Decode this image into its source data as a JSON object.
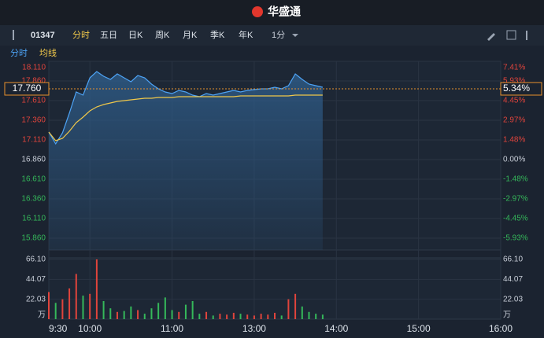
{
  "header": {
    "logo": "华盛通"
  },
  "toolbar": {
    "code": "01347",
    "tabs": [
      "分时",
      "五日",
      "日K",
      "周K",
      "月K",
      "季K",
      "年K"
    ],
    "interval": "1分"
  },
  "chart_data": [
    {
      "type": "line",
      "x": [
        0,
        5,
        10,
        15,
        20,
        25,
        30,
        35,
        40,
        45,
        50,
        55,
        60,
        65,
        70,
        75,
        80,
        85,
        90,
        95,
        100,
        105,
        110,
        115,
        120,
        125,
        130,
        135,
        140,
        145,
        150,
        155,
        160,
        165,
        170,
        175,
        180,
        185,
        190,
        195,
        200
      ],
      "xlim": [
        0,
        330
      ],
      "series": [
        {
          "name": "分时",
          "color": "#4da3f5",
          "values": [
            17.21,
            17.06,
            17.2,
            17.45,
            17.72,
            17.68,
            17.9,
            17.98,
            17.92,
            17.88,
            17.95,
            17.9,
            17.85,
            17.93,
            17.9,
            17.82,
            17.76,
            17.72,
            17.7,
            17.74,
            17.72,
            17.68,
            17.66,
            17.7,
            17.68,
            17.7,
            17.72,
            17.74,
            17.72,
            17.74,
            17.75,
            17.76,
            17.76,
            17.78,
            17.76,
            17.8,
            17.95,
            17.88,
            17.82,
            17.8,
            17.78
          ]
        },
        {
          "name": "均线",
          "color": "#f0c84a",
          "values": [
            17.21,
            17.1,
            17.13,
            17.22,
            17.33,
            17.4,
            17.48,
            17.53,
            17.56,
            17.58,
            17.6,
            17.61,
            17.62,
            17.63,
            17.64,
            17.64,
            17.65,
            17.65,
            17.65,
            17.66,
            17.66,
            17.66,
            17.66,
            17.66,
            17.66,
            17.66,
            17.66,
            17.66,
            17.67,
            17.67,
            17.67,
            17.67,
            17.67,
            17.67,
            17.67,
            17.67,
            17.68,
            17.68,
            17.68,
            17.68,
            17.68
          ]
        }
      ],
      "ylim": [
        15.86,
        18.11
      ],
      "yticks": [
        {
          "value": 18.11,
          "label": "18.110"
        },
        {
          "value": 17.86,
          "label": "17.860"
        },
        {
          "value": 17.61,
          "label": "17.610"
        },
        {
          "value": 17.36,
          "label": "17.360"
        },
        {
          "value": 17.11,
          "label": "17.110"
        },
        {
          "value": 16.86,
          "label": "16.860"
        },
        {
          "value": 16.61,
          "label": "16.610"
        },
        {
          "value": 16.36,
          "label": "16.360"
        },
        {
          "value": 16.11,
          "label": "16.110"
        },
        {
          "value": 15.86,
          "label": "15.860"
        }
      ],
      "y2lim": [
        -5.93,
        7.41
      ],
      "y2ticks": [
        {
          "value": 7.41,
          "label": "7.41%"
        },
        {
          "value": 5.93,
          "label": "5.93%"
        },
        {
          "value": 4.45,
          "label": "4.45%"
        },
        {
          "value": 2.97,
          "label": "2.97%"
        },
        {
          "value": 1.48,
          "label": "1.48%"
        },
        {
          "value": 0,
          "label": "0.00%"
        },
        {
          "value": -1.48,
          "label": "-1.48%"
        },
        {
          "value": -2.97,
          "label": "-2.97%"
        },
        {
          "value": -4.45,
          "label": "-4.45%"
        },
        {
          "value": -5.93,
          "label": "-5.93%"
        }
      ],
      "last_price": {
        "value": 17.76,
        "label": "17.760"
      },
      "last_change": {
        "value": 5.34,
        "label": "5.34%"
      }
    },
    {
      "type": "bar",
      "x": [
        0,
        5,
        10,
        15,
        20,
        25,
        30,
        35,
        40,
        45,
        50,
        55,
        60,
        65,
        70,
        75,
        80,
        85,
        90,
        95,
        100,
        105,
        110,
        115,
        120,
        125,
        130,
        135,
        140,
        145,
        150,
        155,
        160,
        165,
        170,
        175,
        180,
        185,
        190,
        195,
        200
      ],
      "values": [
        30,
        18,
        22,
        34,
        50,
        26,
        28,
        66.1,
        20,
        12,
        8,
        9,
        14,
        10,
        6,
        12,
        18,
        24,
        10,
        8,
        16,
        20,
        6,
        8,
        4,
        6,
        5,
        7,
        6,
        5,
        4,
        6,
        5,
        7,
        4,
        22,
        28,
        14,
        8,
        6,
        5
      ],
      "xlim": [
        0,
        330
      ],
      "xticks": [
        {
          "value": 0,
          "label": "9:30"
        },
        {
          "value": 30,
          "label": "10:00"
        },
        {
          "value": 90,
          "label": "11:00"
        },
        {
          "value": 150,
          "label": "13:00"
        },
        {
          "value": 210,
          "label": "14:00"
        },
        {
          "value": 270,
          "label": "15:00"
        },
        {
          "value": 330,
          "label": "16:00"
        }
      ],
      "ylim": [
        0,
        66.1
      ],
      "yticks": [
        22.03,
        44.07,
        {
          "value": 66.1,
          "label": "66.10"
        }
      ],
      "unit": "万"
    }
  ]
}
